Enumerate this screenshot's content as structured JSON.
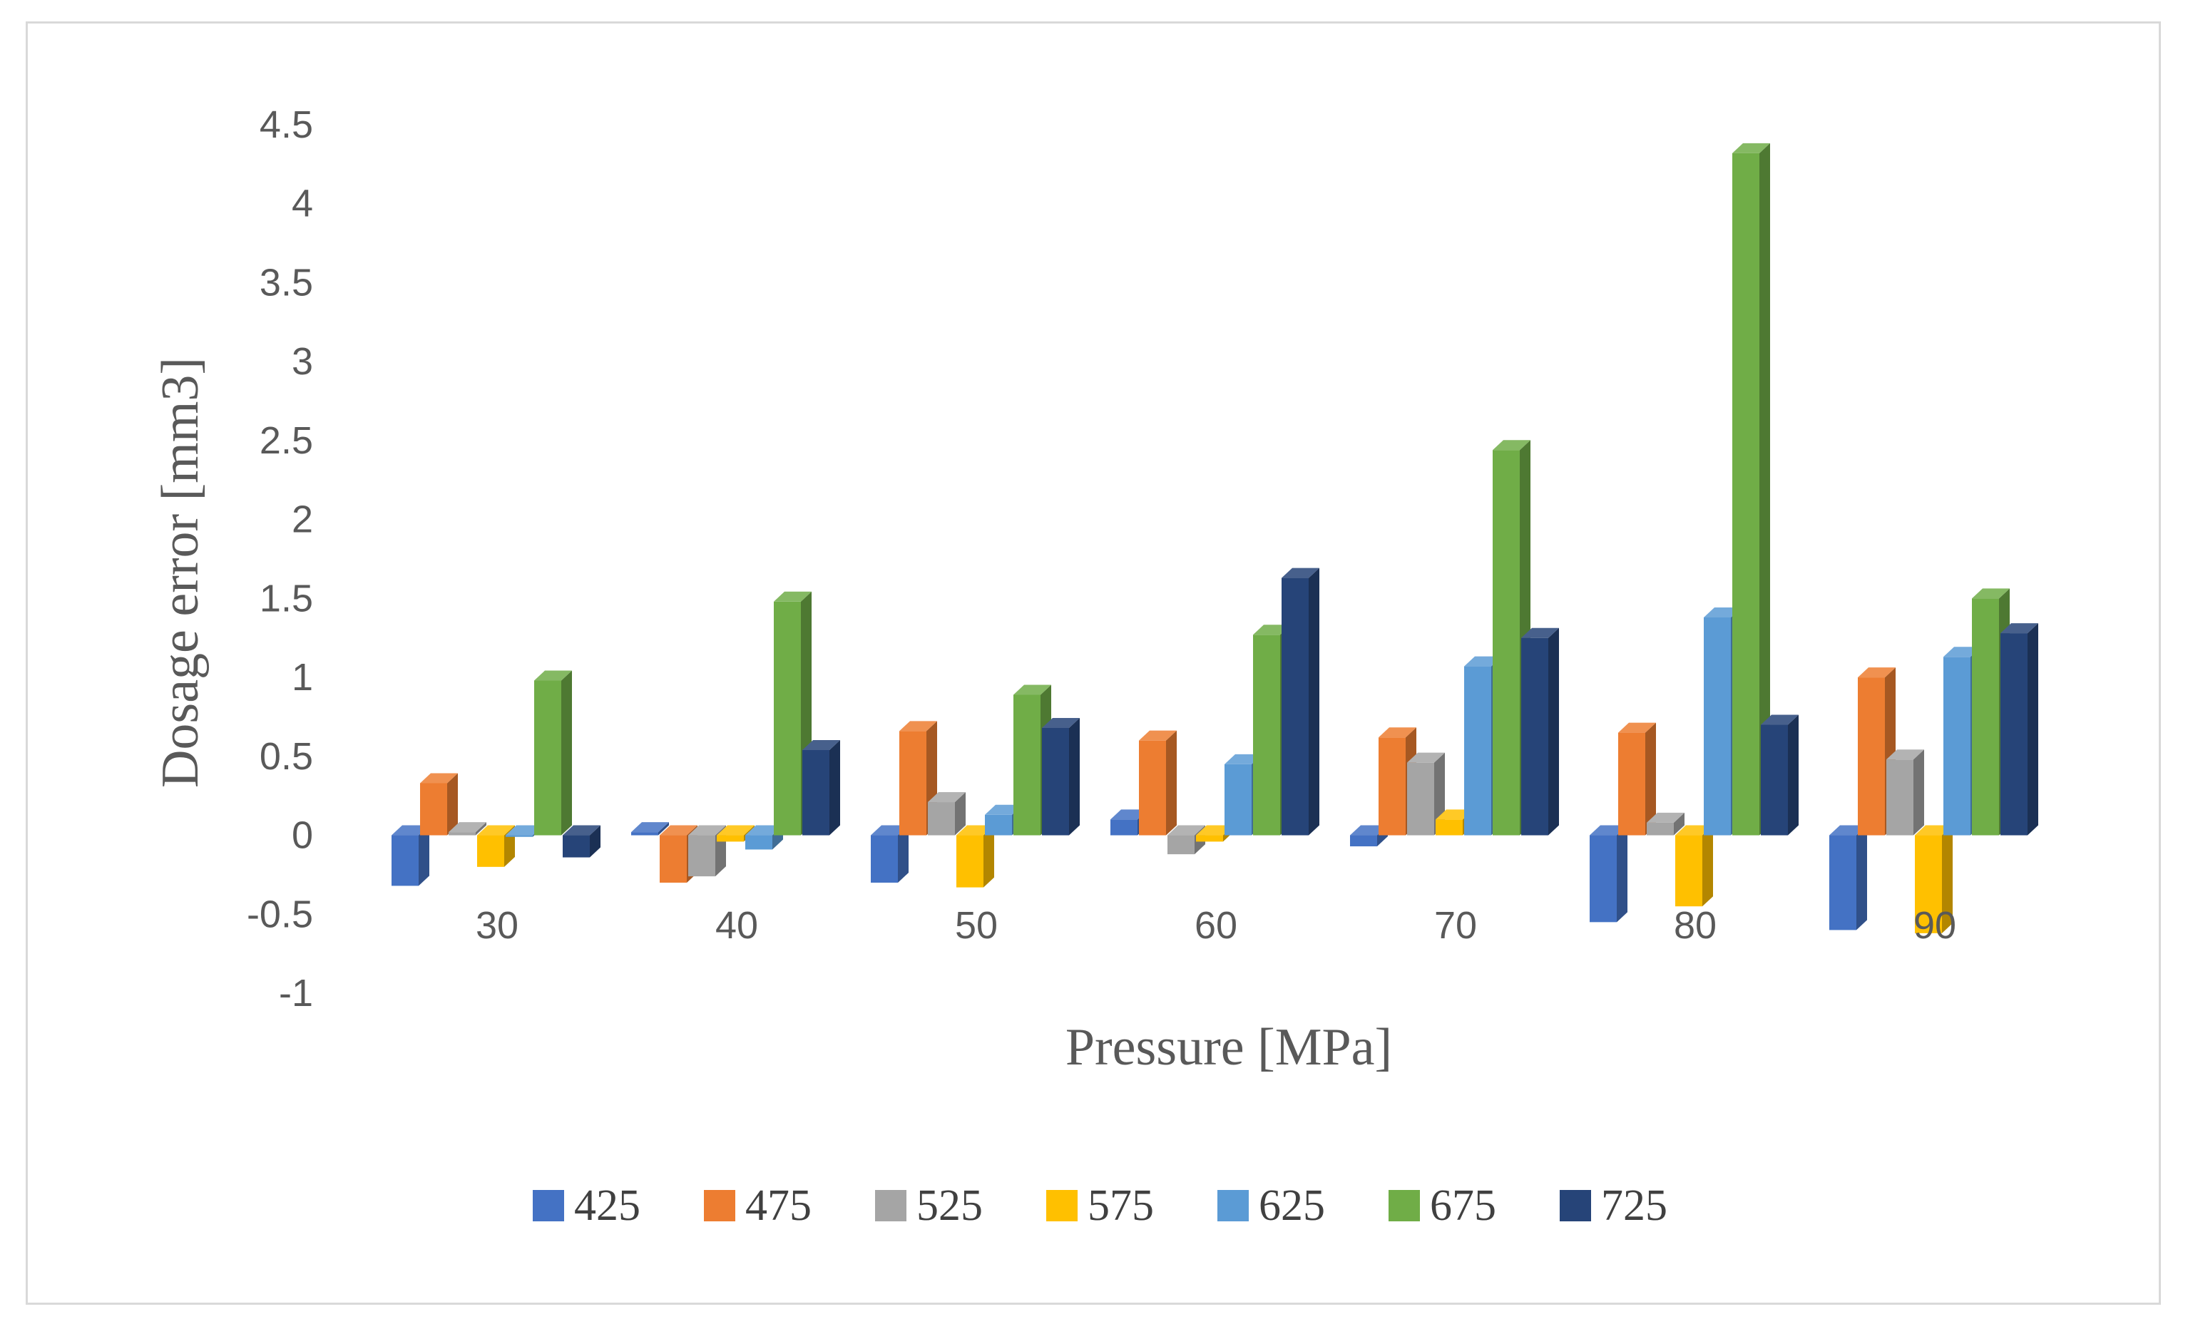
{
  "chart_data": {
    "type": "bar",
    "title": "",
    "xlabel": "Pressure [MPa]",
    "ylabel": "Dosage error [mm3]",
    "ylim": [
      -1,
      4.5
    ],
    "yticks": [
      "4.5",
      "4",
      "3.5",
      "3",
      "2.5",
      "2",
      "1.5",
      "1",
      "0.5",
      "0",
      "-0.5",
      "-1"
    ],
    "categories": [
      "30",
      "40",
      "50",
      "60",
      "70",
      "80",
      "90"
    ],
    "legend_position": "bottom",
    "series": [
      {
        "name": "425",
        "color": "#4472C4",
        "values": [
          -0.32,
          0.02,
          -0.3,
          0.1,
          -0.07,
          -0.55,
          -0.6
        ]
      },
      {
        "name": "475",
        "color": "#ED7D31",
        "values": [
          0.33,
          -0.3,
          0.66,
          0.6,
          0.62,
          0.65,
          1.0
        ]
      },
      {
        "name": "525",
        "color": "#A5A5A5",
        "values": [
          0.02,
          -0.26,
          0.21,
          -0.12,
          0.46,
          0.08,
          0.48
        ]
      },
      {
        "name": "575",
        "color": "#FFC000",
        "values": [
          -0.2,
          -0.04,
          -0.33,
          -0.04,
          0.1,
          -0.45,
          -0.62
        ]
      },
      {
        "name": "625",
        "color": "#5B9BD5",
        "values": [
          -0.01,
          -0.09,
          0.13,
          0.45,
          1.07,
          1.38,
          1.13
        ]
      },
      {
        "name": "675",
        "color": "#70AD47",
        "values": [
          0.98,
          1.48,
          0.89,
          1.27,
          2.44,
          4.32,
          1.5
        ]
      },
      {
        "name": "725",
        "color": "#264478",
        "values": [
          -0.14,
          0.54,
          0.68,
          1.63,
          1.25,
          0.7,
          1.28
        ]
      }
    ]
  }
}
